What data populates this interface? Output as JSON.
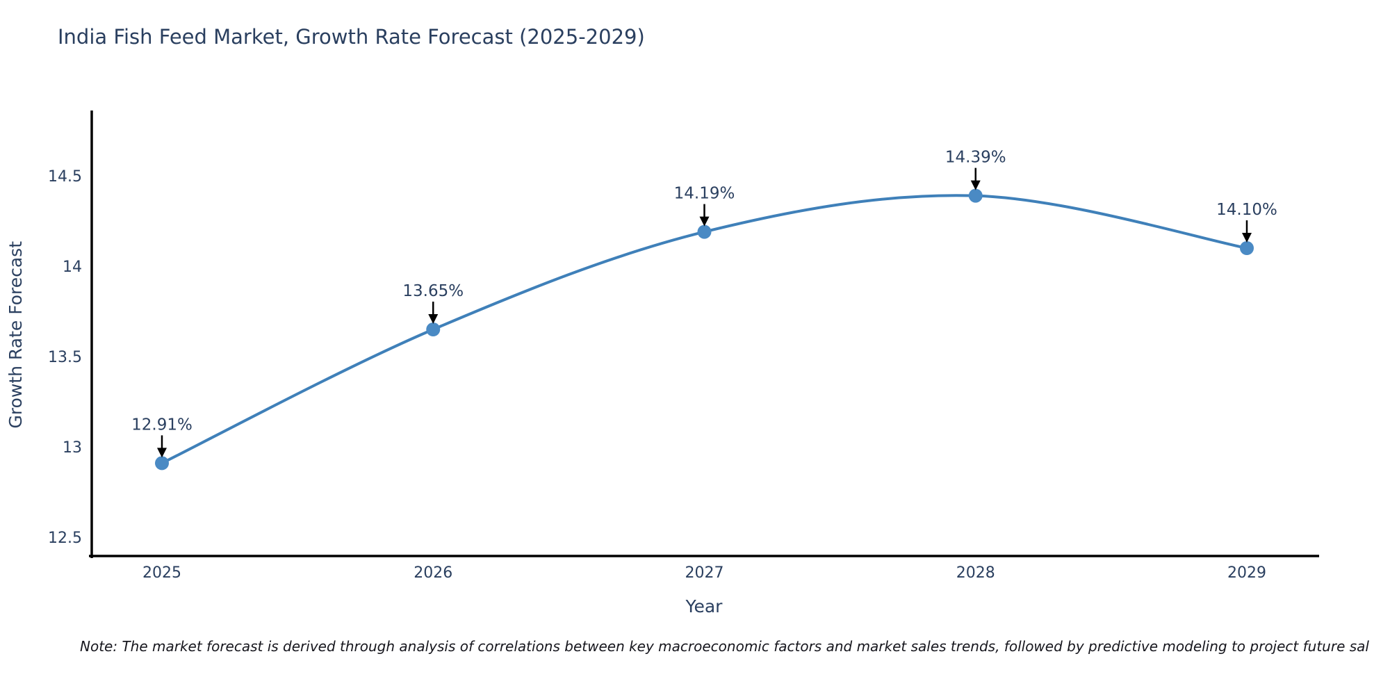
{
  "title": "India Fish Feed Market, Growth Rate Forecast (2025-2029)",
  "note": {
    "text": "Note: The market forecast is derived through analysis of correlations between key macroeconomic factors and market sales trends, followed by predictive modeling to project future sal"
  },
  "colors": {
    "line": "#3f80b9",
    "marker": "#4a8ac4",
    "axis_line": "#000000",
    "tick_text": "#2a3f5f",
    "annotation_text": "#2a3f5f",
    "arrow": "#000000",
    "title_text": "#2a3f5f",
    "background": "#ffffff"
  },
  "chart_data": {
    "type": "line",
    "title": "India Fish Feed Market, Growth Rate Forecast (2025-2029)",
    "xlabel": "Year",
    "ylabel": "Growth Rate Forecast",
    "x": [
      2025,
      2026,
      2027,
      2028,
      2029
    ],
    "series": [
      {
        "name": "Growth Rate Forecast",
        "values": [
          12.91,
          13.65,
          14.19,
          14.39,
          14.1
        ]
      }
    ],
    "point_labels": [
      "12.91%",
      "13.65%",
      "14.19%",
      "14.39%",
      "14.10%"
    ],
    "x_ticks": [
      "2025",
      "2026",
      "2027",
      "2028",
      "2029"
    ],
    "y_ticks": [
      "12.5",
      "13",
      "13.5",
      "14",
      "14.5"
    ],
    "y_tick_values": [
      12.5,
      13,
      13.5,
      14,
      14.5
    ],
    "ylim": [
      12.39,
      14.87
    ],
    "line_shape": "spline",
    "grid": false,
    "legend_visible": false,
    "annotation_arrows": true
  }
}
